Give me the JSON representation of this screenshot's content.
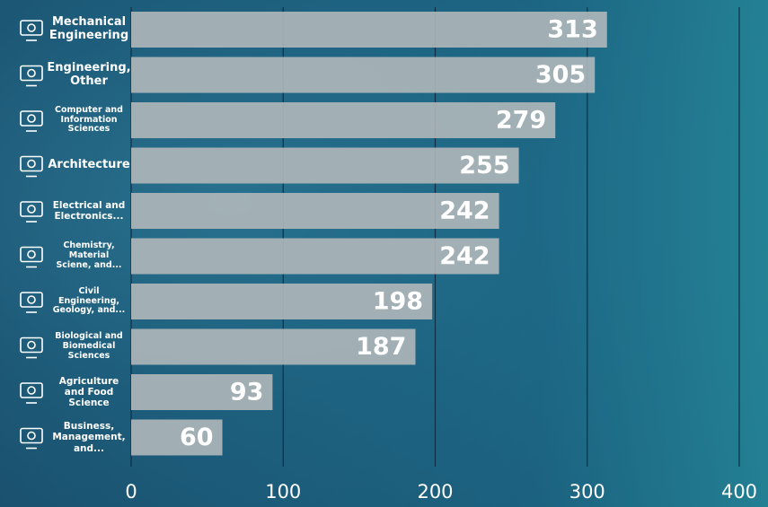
{
  "chart_data": {
    "type": "bar",
    "orientation": "horizontal",
    "categories": [
      "Mechanical Engineering",
      "Engineering, Other",
      "Computer and Information Sciences",
      "Architecture",
      "Electrical and Electronics...",
      "Chemistry, Material Sciene, and...",
      "Civil Engineering, Geology, and...",
      "Biological and Biomedical Sciences",
      "Agriculture and Food Science",
      "Business, Management, and..."
    ],
    "values": [
      313,
      305,
      279,
      255,
      242,
      242,
      198,
      187,
      93,
      60
    ],
    "color": "#b4b9bc",
    "xlim": [
      0,
      400
    ],
    "xticks": [
      0,
      100,
      200,
      300,
      400
    ],
    "grid": true
  }
}
